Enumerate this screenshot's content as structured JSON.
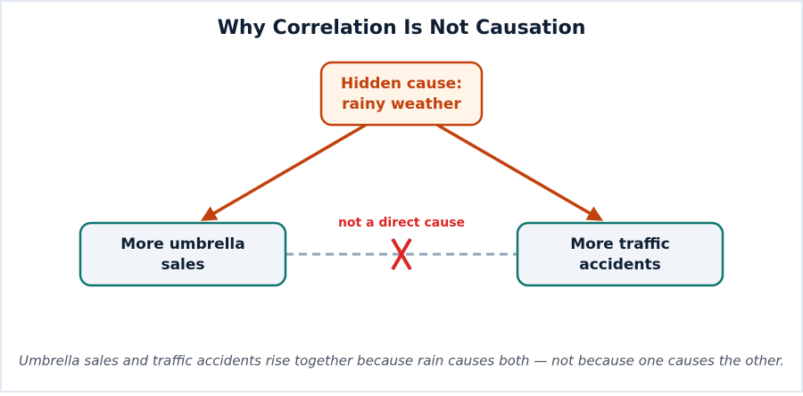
{
  "title": "Why Correlation Is Not Causation",
  "nodes": [
    {
      "label_lines": [
        "Hidden cause:",
        "rainy weather"
      ]
    },
    {
      "label_lines": [
        "More umbrella",
        "sales"
      ]
    },
    {
      "label_lines": [
        "More traffic",
        "accidents"
      ]
    }
  ],
  "link_label": "not a direct cause",
  "caption": "Umbrella sales and traffic accidents rise together because rain causes both — not because one causes the other."
}
